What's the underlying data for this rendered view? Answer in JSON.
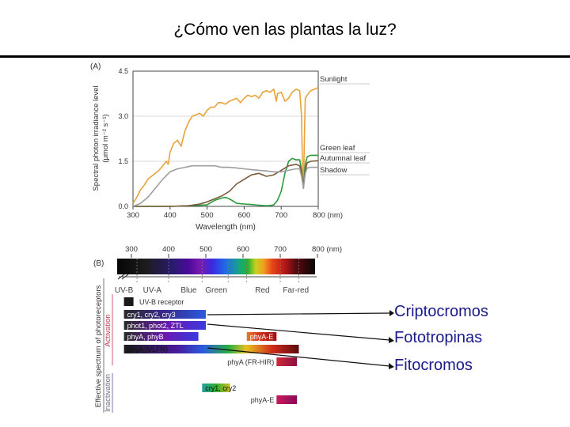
{
  "slide": {
    "title": "¿Cómo ven las plantas la luz?",
    "callouts": [
      "Criptocromos",
      "Fototropinas",
      "Fitocromos"
    ],
    "callout_color": "#1a1a8c"
  },
  "chart_data": [
    {
      "type": "line",
      "panel_label": "(A)",
      "ylabel_line1": "Spectral photon irradiance level",
      "ylabel_line2": "(μmol m⁻² s⁻¹)",
      "xlabel": "Wavelength (nm)",
      "xlim": [
        300,
        800
      ],
      "ylim": [
        0,
        4.5
      ],
      "x_ticks": [
        300,
        400,
        500,
        600,
        700,
        800
      ],
      "x_tick_labels": [
        "300",
        "400",
        "500",
        "600",
        "700",
        "800 (nm)"
      ],
      "y_ticks": [
        0,
        1.5,
        3.0,
        4.5
      ],
      "y_tick_labels": [
        "0.0",
        "1.5",
        "3.0",
        "4.5"
      ],
      "grid": "horizontal",
      "series": [
        {
          "name": "Sunlight",
          "color": "#e8a33c",
          "x": [
            300,
            310,
            320,
            330,
            340,
            350,
            360,
            370,
            380,
            390,
            395,
            400,
            410,
            420,
            430,
            440,
            450,
            460,
            470,
            480,
            490,
            500,
            510,
            520,
            530,
            540,
            550,
            560,
            570,
            580,
            590,
            600,
            610,
            620,
            630,
            640,
            650,
            660,
            670,
            680,
            687,
            690,
            700,
            710,
            720,
            730,
            740,
            750,
            755,
            758,
            760,
            763,
            765,
            770,
            780,
            790,
            800
          ],
          "y": [
            0.1,
            0.3,
            0.55,
            0.7,
            0.9,
            1.0,
            1.1,
            1.2,
            1.35,
            1.5,
            1.4,
            1.8,
            2.1,
            2.2,
            2.0,
            2.5,
            2.8,
            3.0,
            3.05,
            3.1,
            3.0,
            3.2,
            3.3,
            3.3,
            3.45,
            3.45,
            3.4,
            3.5,
            3.55,
            3.6,
            3.45,
            3.6,
            3.7,
            3.65,
            3.7,
            3.6,
            3.8,
            3.85,
            3.8,
            3.9,
            3.5,
            3.75,
            3.8,
            3.5,
            3.6,
            3.8,
            3.9,
            3.85,
            3.0,
            1.0,
            0.6,
            2.5,
            3.6,
            3.7,
            3.85,
            3.9,
            3.95
          ]
        },
        {
          "name": "Green leaf",
          "color": "#2a9a3c",
          "x": [
            300,
            400,
            450,
            500,
            520,
            540,
            550,
            560,
            570,
            580,
            600,
            620,
            640,
            660,
            670,
            680,
            690,
            700,
            710,
            720,
            730,
            740,
            750,
            755,
            760,
            765,
            770,
            780,
            800
          ],
          "y": [
            0,
            0,
            0.02,
            0.05,
            0.2,
            0.28,
            0.3,
            0.25,
            0.18,
            0.1,
            0.08,
            0.06,
            0.04,
            0.02,
            0.03,
            0.05,
            0.2,
            0.5,
            1.1,
            1.5,
            1.6,
            1.55,
            1.55,
            1.2,
            0.6,
            1.4,
            1.65,
            1.7,
            1.7
          ]
        },
        {
          "name": "Autumnal leaf",
          "color": "#7a5b3a",
          "x": [
            300,
            400,
            450,
            480,
            500,
            520,
            540,
            560,
            580,
            600,
            620,
            640,
            660,
            680,
            700,
            720,
            740,
            750,
            755,
            760,
            765,
            770,
            780,
            800
          ],
          "y": [
            0,
            0,
            0.02,
            0.08,
            0.15,
            0.25,
            0.35,
            0.5,
            0.75,
            0.9,
            1.05,
            1.1,
            1.0,
            1.05,
            1.2,
            1.35,
            1.4,
            1.35,
            1.1,
            0.7,
            1.2,
            1.45,
            1.5,
            1.52
          ]
        },
        {
          "name": "Shadow",
          "color": "#9e9e9e",
          "x": [
            300,
            320,
            340,
            360,
            380,
            400,
            420,
            440,
            460,
            480,
            500,
            520,
            540,
            560,
            580,
            600,
            620,
            640,
            660,
            680,
            700,
            720,
            740,
            750,
            755,
            760,
            765,
            770,
            780,
            800
          ],
          "y": [
            0,
            0.1,
            0.3,
            0.6,
            0.9,
            1.15,
            1.25,
            1.3,
            1.35,
            1.35,
            1.35,
            1.35,
            1.3,
            1.3,
            1.28,
            1.25,
            1.22,
            1.2,
            1.18,
            1.15,
            1.15,
            1.2,
            1.25,
            1.25,
            1.0,
            0.6,
            1.1,
            1.28,
            1.3,
            1.3
          ]
        }
      ]
    },
    {
      "type": "table",
      "panel_label": "(B)",
      "spectrum_tick_values": [
        300,
        400,
        500,
        600,
        700,
        800
      ],
      "spectrum_tick_labels": [
        "300",
        "400",
        "500",
        "600",
        "700",
        "800 (nm)"
      ],
      "region_labels": [
        {
          "label": "UV-B",
          "center_nm": 280
        },
        {
          "label": "UV-A",
          "center_nm": 356
        },
        {
          "label": "Blue",
          "center_nm": 454
        },
        {
          "label": "Green",
          "center_nm": 528
        },
        {
          "label": "Red",
          "center_nm": 652
        },
        {
          "label": "Far-red",
          "center_nm": 742
        }
      ],
      "ylabel_activation": "Activation",
      "ylabel_inactivation": "Inactivation",
      "ylabel_outer": "Effective spectrum of photoreceptors",
      "bars": [
        {
          "label": "UV-B receptor",
          "from_nm": 280,
          "to_nm": 315,
          "group": "activation"
        },
        {
          "label": "cry1, cry2, cry3",
          "from_nm": 280,
          "to_nm": 500,
          "group": "activation"
        },
        {
          "label": "phot1, phot2, ZTL",
          "from_nm": 280,
          "to_nm": 500,
          "group": "activation"
        },
        {
          "label": "phyA, phyB",
          "from_nm": 280,
          "to_nm": 480,
          "group": "activation"
        },
        {
          "label": "phyA-E",
          "from_nm": 610,
          "to_nm": 690,
          "group": "activation"
        },
        {
          "label": "phyA (VLFR)",
          "from_nm": 280,
          "to_nm": 750,
          "group": "activation"
        },
        {
          "label": "phyA (FR-HIR)",
          "from_nm": 690,
          "to_nm": 745,
          "group": "activation"
        },
        {
          "label": "cry1, cry2",
          "from_nm": 490,
          "to_nm": 565,
          "group": "inactivation"
        },
        {
          "label": "phyA-E",
          "from_nm": 690,
          "to_nm": 745,
          "group": "inactivation"
        }
      ]
    }
  ]
}
